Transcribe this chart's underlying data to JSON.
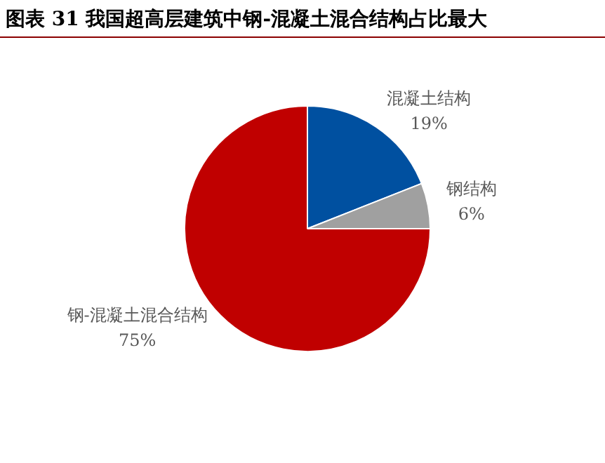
{
  "chart_data": {
    "type": "pie",
    "title": "图表 31  我国超高层建筑中钢-混凝土混合结构占比最大",
    "categories": [
      "混凝土结构",
      "钢结构",
      "钢-混凝土混合结构"
    ],
    "values": [
      19,
      6,
      75
    ],
    "value_labels": [
      "19%",
      "6%",
      "75%"
    ],
    "colors": [
      "#0050a0",
      "#a0a0a0",
      "#c00000"
    ],
    "legend": false
  }
}
